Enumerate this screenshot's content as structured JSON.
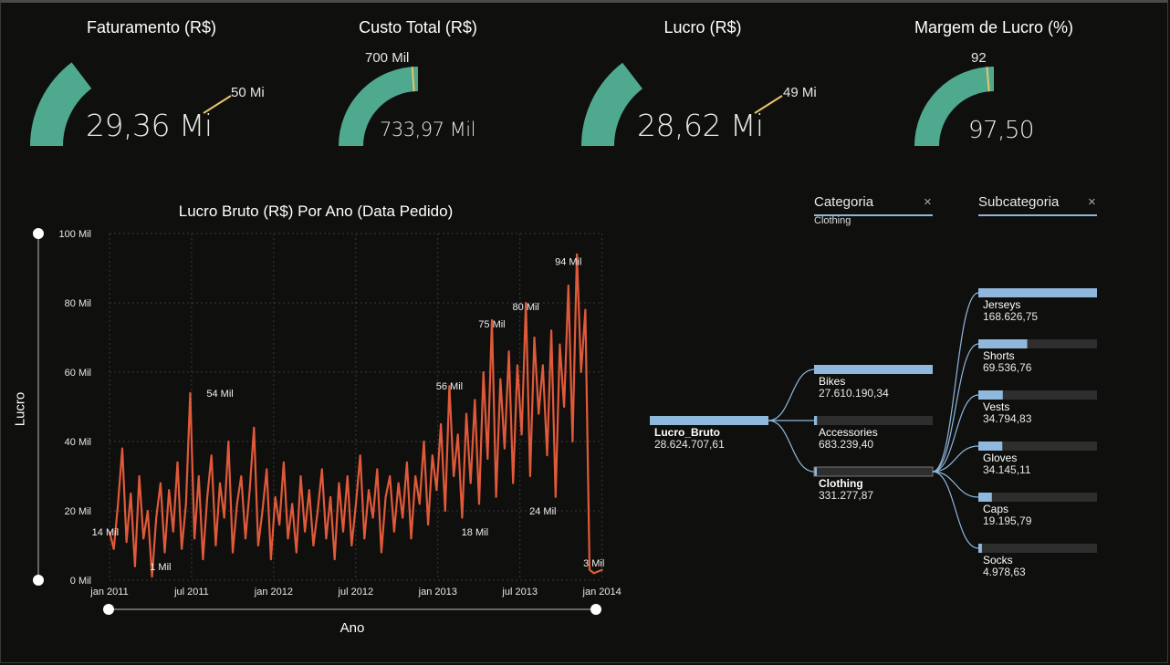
{
  "kpis": [
    {
      "title": "Faturamento (R$)",
      "value": "29,36 Mi",
      "target": "50 Mi",
      "fraction": 0.587,
      "target_fraction": 1.0
    },
    {
      "title": "Custo Total (R$)",
      "value": "733,97 Mil",
      "target": "700 Mil",
      "fraction": 1.0,
      "target_fraction": 0.954
    },
    {
      "title": "Lucro (R$)",
      "value": "28,62 Mi",
      "target": "49 Mi",
      "fraction": 0.584,
      "target_fraction": 1.0
    },
    {
      "title": "Margem de Lucro (%)",
      "value": "97,50",
      "target": "92",
      "fraction": 1.0,
      "target_fraction": 0.944
    }
  ],
  "colors": {
    "gauge_fill": "#4fa98e",
    "target_line": "#e8c56a",
    "line": "#e05a3a",
    "bar": "#8fb8dc",
    "bar_bg": "#2e2e2e"
  },
  "chart": {
    "title": "Lucro Bruto (R$) Por Ano (Data Pedido)",
    "ylabel": "Lucro",
    "xlabel": "Ano"
  },
  "chart_data": {
    "type": "line",
    "title": "Lucro Bruto (R$) Por Ano (Data Pedido)",
    "xlabel": "Ano",
    "ylabel": "Lucro",
    "ylim": [
      0,
      100
    ],
    "y_ticks": [
      "0 Mil",
      "20 Mil",
      "40 Mil",
      "60 Mil",
      "80 Mil",
      "100 Mil"
    ],
    "x_ticks": [
      "jan 2011",
      "jul 2011",
      "jan 2012",
      "jul 2012",
      "jan 2013",
      "jul 2013",
      "jan 2014"
    ],
    "series": [
      {
        "points": [
          [
            0,
            14
          ],
          [
            0.05,
            9
          ],
          [
            0.1,
            22
          ],
          [
            0.15,
            38
          ],
          [
            0.2,
            11
          ],
          [
            0.25,
            25
          ],
          [
            0.3,
            4
          ],
          [
            0.35,
            30
          ],
          [
            0.4,
            12
          ],
          [
            0.45,
            20
          ],
          [
            0.5,
            1
          ],
          [
            0.55,
            18
          ],
          [
            0.6,
            28
          ],
          [
            0.65,
            8
          ],
          [
            0.7,
            26
          ],
          [
            0.75,
            14
          ],
          [
            0.8,
            34
          ],
          [
            0.85,
            9
          ],
          [
            0.9,
            22
          ],
          [
            0.95,
            54
          ],
          [
            1.0,
            12
          ],
          [
            1.05,
            30
          ],
          [
            1.1,
            6
          ],
          [
            1.15,
            24
          ],
          [
            1.2,
            36
          ],
          [
            1.25,
            10
          ],
          [
            1.3,
            28
          ],
          [
            1.35,
            18
          ],
          [
            1.4,
            40
          ],
          [
            1.45,
            8
          ],
          [
            1.5,
            22
          ],
          [
            1.55,
            30
          ],
          [
            1.6,
            12
          ],
          [
            1.65,
            26
          ],
          [
            1.7,
            44
          ],
          [
            1.75,
            10
          ],
          [
            1.8,
            20
          ],
          [
            1.85,
            32
          ],
          [
            1.9,
            6
          ],
          [
            1.95,
            24
          ],
          [
            2.0,
            16
          ],
          [
            2.05,
            34
          ],
          [
            2.1,
            12
          ],
          [
            2.15,
            22
          ],
          [
            2.2,
            8
          ],
          [
            2.25,
            30
          ],
          [
            2.3,
            14
          ],
          [
            2.35,
            26
          ],
          [
            2.4,
            10
          ],
          [
            2.45,
            20
          ],
          [
            2.5,
            32
          ],
          [
            2.55,
            12
          ],
          [
            2.6,
            24
          ],
          [
            2.65,
            6
          ],
          [
            2.7,
            28
          ],
          [
            2.75,
            14
          ],
          [
            2.8,
            30
          ],
          [
            2.85,
            10
          ],
          [
            2.9,
            22
          ],
          [
            2.95,
            36
          ],
          [
            3.0,
            12
          ],
          [
            3.05,
            26
          ],
          [
            3.1,
            18
          ],
          [
            3.15,
            32
          ],
          [
            3.2,
            8
          ],
          [
            3.25,
            24
          ],
          [
            3.3,
            30
          ],
          [
            3.35,
            14
          ],
          [
            3.4,
            28
          ],
          [
            3.45,
            18
          ],
          [
            3.5,
            34
          ],
          [
            3.55,
            12
          ],
          [
            3.6,
            30
          ],
          [
            3.65,
            22
          ],
          [
            3.7,
            40
          ],
          [
            3.75,
            16
          ],
          [
            3.8,
            36
          ],
          [
            3.85,
            26
          ],
          [
            3.9,
            45
          ],
          [
            3.95,
            20
          ],
          [
            4.0,
            56
          ],
          [
            4.05,
            30
          ],
          [
            4.1,
            42
          ],
          [
            4.15,
            18
          ],
          [
            4.2,
            48
          ],
          [
            4.25,
            28
          ],
          [
            4.3,
            52
          ],
          [
            4.35,
            22
          ],
          [
            4.4,
            60
          ],
          [
            4.45,
            35
          ],
          [
            4.5,
            75
          ],
          [
            4.55,
            24
          ],
          [
            4.6,
            58
          ],
          [
            4.65,
            38
          ],
          [
            4.7,
            66
          ],
          [
            4.75,
            28
          ],
          [
            4.8,
            62
          ],
          [
            4.85,
            42
          ],
          [
            4.9,
            80
          ],
          [
            4.95,
            30
          ],
          [
            5.0,
            70
          ],
          [
            5.05,
            48
          ],
          [
            5.1,
            62
          ],
          [
            5.15,
            36
          ],
          [
            5.2,
            72
          ],
          [
            5.25,
            24
          ],
          [
            5.3,
            68
          ],
          [
            5.35,
            50
          ],
          [
            5.4,
            85
          ],
          [
            5.45,
            40
          ],
          [
            5.5,
            94
          ],
          [
            5.55,
            60
          ],
          [
            5.6,
            78
          ],
          [
            5.65,
            3
          ],
          [
            5.7,
            2
          ],
          [
            5.75,
            2.5
          ],
          [
            5.8,
            3
          ]
        ]
      }
    ],
    "annotations": [
      "14 Mil",
      "1 Mil",
      "54 Mil",
      "56 Mil",
      "18 Mil",
      "75 Mil",
      "80 Mil",
      "24 Mil",
      "94 Mil",
      "3 Mil"
    ]
  },
  "tree": {
    "headers": [
      {
        "label": "Categoria",
        "filter": "Clothing"
      },
      {
        "label": "Subcategoria",
        "filter": ""
      }
    ],
    "root": {
      "label": "Lucro_Bruto",
      "value": "28.624.707,61",
      "fraction": 1.0
    },
    "categories": [
      {
        "label": "Bikes",
        "value": "27.610.190,34",
        "fraction": 1.0,
        "selected": false
      },
      {
        "label": "Accessories",
        "value": "683.239,40",
        "fraction": 0.025,
        "selected": false
      },
      {
        "label": "Clothing",
        "value": "331.277,87",
        "fraction": 0.012,
        "selected": true
      }
    ],
    "subcategories": [
      {
        "label": "Jerseys",
        "value": "168.626,75",
        "fraction": 1.0
      },
      {
        "label": "Shorts",
        "value": "69.536,76",
        "fraction": 0.412
      },
      {
        "label": "Vests",
        "value": "34.794,83",
        "fraction": 0.206
      },
      {
        "label": "Gloves",
        "value": "34.145,11",
        "fraction": 0.202
      },
      {
        "label": "Caps",
        "value": "19.195,79",
        "fraction": 0.114
      },
      {
        "label": "Socks",
        "value": "4.978,63",
        "fraction": 0.03
      }
    ]
  }
}
